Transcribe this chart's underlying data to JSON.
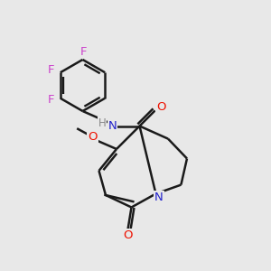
{
  "background_color": "#e8e8e8",
  "bond_color": "#1a1a1a",
  "bond_width": 1.8,
  "atom_colors": {
    "F": "#cc44cc",
    "O": "#ee1100",
    "N": "#2222cc",
    "C": "#1a1a1a",
    "H": "#888888"
  },
  "figsize": [
    3.0,
    3.0
  ],
  "dpi": 100,
  "xlim": [
    0,
    10
  ],
  "ylim": [
    0,
    10
  ]
}
